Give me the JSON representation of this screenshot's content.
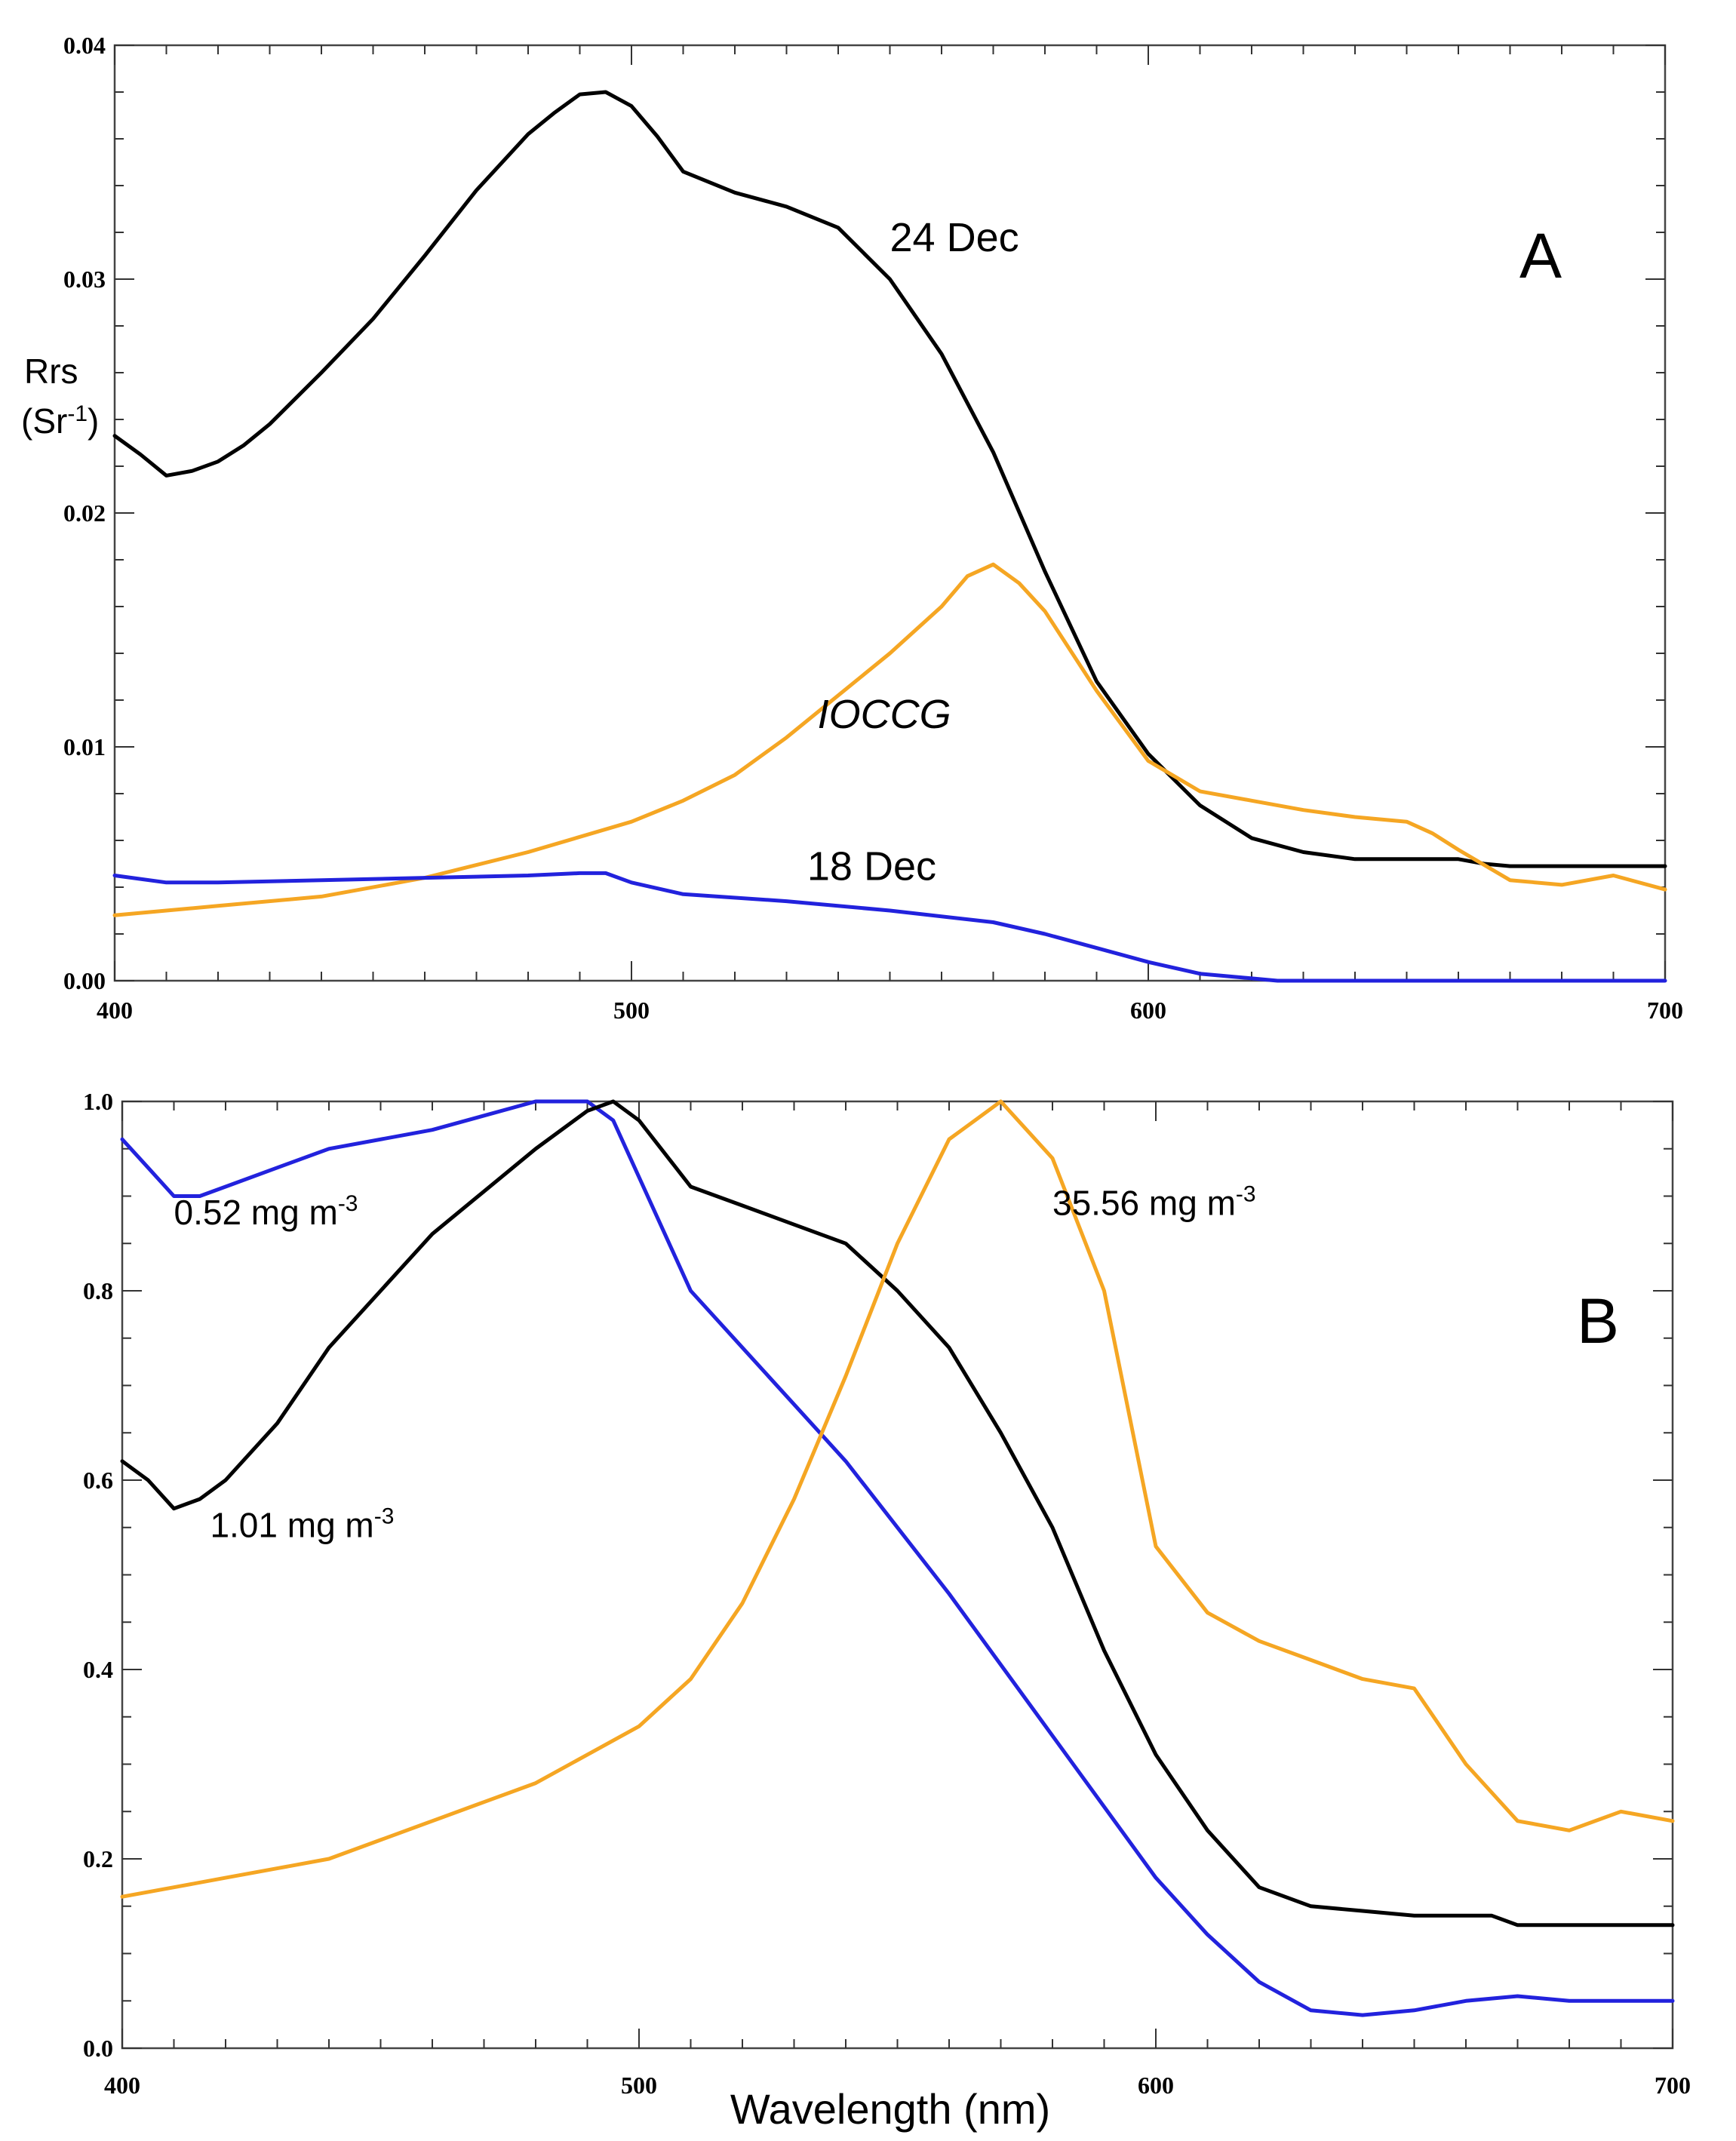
{
  "chart_data": [
    {
      "panel": "A",
      "type": "line",
      "panel_label": "A",
      "ylabel_line1": "Rrs",
      "ylabel_line2_base": "(Sr",
      "ylabel_line2_sup": "-1",
      "ylabel_line2_end": ")",
      "xlim": [
        400,
        700
      ],
      "ylim": [
        0,
        0.04
      ],
      "xticks": [
        {
          "value": 400,
          "label": "400"
        },
        {
          "value": 500,
          "label": "500"
        },
        {
          "value": 600,
          "label": "600"
        },
        {
          "value": 700,
          "label": "700"
        }
      ],
      "yticks": [
        {
          "value": 0.0,
          "label": "0.00"
        },
        {
          "value": 0.01,
          "label": "0.01"
        },
        {
          "value": 0.02,
          "label": "0.02"
        },
        {
          "value": 0.03,
          "label": "0.03"
        },
        {
          "value": 0.04,
          "label": "0.04"
        }
      ],
      "series": [
        {
          "name": "24 Dec",
          "color": "#000000",
          "x": [
            400,
            405,
            410,
            415,
            420,
            425,
            430,
            440,
            450,
            460,
            470,
            480,
            485,
            490,
            495,
            500,
            505,
            510,
            520,
            530,
            540,
            550,
            560,
            570,
            580,
            590,
            600,
            610,
            620,
            630,
            640,
            650,
            660,
            665,
            670,
            680,
            690,
            700
          ],
          "y": [
            0.0233,
            0.0225,
            0.0216,
            0.0218,
            0.0222,
            0.0229,
            0.0238,
            0.026,
            0.0283,
            0.031,
            0.0338,
            0.0362,
            0.0371,
            0.0379,
            0.038,
            0.0374,
            0.0361,
            0.0346,
            0.0337,
            0.0331,
            0.0322,
            0.03,
            0.0268,
            0.0226,
            0.0175,
            0.0128,
            0.0097,
            0.0075,
            0.0061,
            0.0055,
            0.0052,
            0.0052,
            0.0052,
            0.005,
            0.0049,
            0.0049,
            0.0049,
            0.0049
          ]
        },
        {
          "name": "IOCCG",
          "color": "#F5A623",
          "x": [
            400,
            410,
            420,
            440,
            460,
            480,
            500,
            510,
            520,
            530,
            540,
            550,
            560,
            565,
            570,
            575,
            580,
            590,
            600,
            610,
            620,
            630,
            640,
            650,
            655,
            660,
            670,
            680,
            690,
            700
          ],
          "y": [
            0.0028,
            0.003,
            0.0032,
            0.0036,
            0.0044,
            0.0055,
            0.0068,
            0.0077,
            0.0088,
            0.0104,
            0.0122,
            0.014,
            0.016,
            0.0173,
            0.0178,
            0.017,
            0.0158,
            0.0124,
            0.0094,
            0.0081,
            0.0077,
            0.0073,
            0.007,
            0.0068,
            0.0063,
            0.0056,
            0.0043,
            0.0041,
            0.0045,
            0.0039
          ]
        },
        {
          "name": "18 Dec",
          "color": "#2222DD",
          "x": [
            400,
            410,
            420,
            440,
            460,
            480,
            490,
            495,
            500,
            510,
            530,
            550,
            570,
            580,
            590,
            600,
            610,
            620,
            625,
            630,
            640,
            650,
            660,
            670,
            680,
            690,
            700
          ],
          "y": [
            0.0045,
            0.0042,
            0.0042,
            0.0043,
            0.0044,
            0.0045,
            0.0046,
            0.0046,
            0.0042,
            0.0037,
            0.0034,
            0.003,
            0.0025,
            0.002,
            0.0014,
            0.0008,
            0.0003,
            0.0001,
            0.0,
            0.0,
            0.0,
            0.0,
            0.0,
            0.0,
            0.0,
            0.0,
            0.0
          ]
        }
      ],
      "annotations": [
        {
          "text": "24 Dec",
          "x": 550,
          "y": 0.0312,
          "italic": false
        },
        {
          "text": "IOCCG",
          "x": 536,
          "y": 0.0108,
          "italic": true
        },
        {
          "text": "18 Dec",
          "x": 534,
          "y": 0.0043,
          "italic": false
        }
      ]
    },
    {
      "panel": "B",
      "type": "line",
      "panel_label": "B",
      "xlabel": "Wavelength (nm)",
      "xlim": [
        400,
        700
      ],
      "ylim": [
        0,
        1.0
      ],
      "xticks": [
        {
          "value": 400,
          "label": "400"
        },
        {
          "value": 500,
          "label": "500"
        },
        {
          "value": 600,
          "label": "600"
        },
        {
          "value": 700,
          "label": "700"
        }
      ],
      "yticks": [
        {
          "value": 0.0,
          "label": "0.0"
        },
        {
          "value": 0.2,
          "label": "0.2"
        },
        {
          "value": 0.4,
          "label": "0.4"
        },
        {
          "value": 0.6,
          "label": "0.6"
        },
        {
          "value": 0.8,
          "label": "0.8"
        },
        {
          "value": 1.0,
          "label": "1.0"
        }
      ],
      "series": [
        {
          "name": "0.52 mg m-3",
          "color": "#2222DD",
          "x": [
            400,
            405,
            410,
            415,
            420,
            430,
            440,
            460,
            480,
            490,
            495,
            500,
            510,
            520,
            540,
            560,
            580,
            600,
            610,
            620,
            630,
            640,
            650,
            660,
            670,
            680,
            690,
            700
          ],
          "y": [
            0.96,
            0.93,
            0.9,
            0.9,
            0.91,
            0.93,
            0.95,
            0.97,
            1.0,
            1.0,
            0.98,
            0.92,
            0.8,
            0.74,
            0.62,
            0.48,
            0.33,
            0.18,
            0.12,
            0.07,
            0.04,
            0.035,
            0.04,
            0.05,
            0.055,
            0.05,
            0.05,
            0.05
          ]
        },
        {
          "name": "1.01 mg m-3",
          "color": "#000000",
          "x": [
            400,
            405,
            410,
            415,
            420,
            430,
            440,
            460,
            480,
            490,
            495,
            500,
            510,
            520,
            530,
            540,
            550,
            560,
            570,
            580,
            590,
            600,
            610,
            620,
            630,
            640,
            650,
            660,
            665,
            670,
            680,
            690,
            700
          ],
          "y": [
            0.62,
            0.6,
            0.57,
            0.58,
            0.6,
            0.66,
            0.74,
            0.86,
            0.95,
            0.99,
            1.0,
            0.98,
            0.91,
            0.89,
            0.87,
            0.85,
            0.8,
            0.74,
            0.65,
            0.55,
            0.42,
            0.31,
            0.23,
            0.17,
            0.15,
            0.145,
            0.14,
            0.14,
            0.14,
            0.13,
            0.13,
            0.13,
            0.13
          ]
        },
        {
          "name": "35.56 mg m-3",
          "color": "#F5A623",
          "x": [
            400,
            410,
            420,
            430,
            440,
            450,
            460,
            470,
            480,
            490,
            500,
            510,
            520,
            530,
            540,
            550,
            560,
            565,
            570,
            575,
            580,
            590,
            600,
            610,
            620,
            630,
            640,
            650,
            655,
            660,
            670,
            680,
            690,
            700
          ],
          "y": [
            0.16,
            0.17,
            0.18,
            0.19,
            0.2,
            0.22,
            0.24,
            0.26,
            0.28,
            0.31,
            0.34,
            0.39,
            0.47,
            0.58,
            0.71,
            0.85,
            0.96,
            0.98,
            1.0,
            0.97,
            0.94,
            0.8,
            0.53,
            0.46,
            0.43,
            0.41,
            0.39,
            0.38,
            0.34,
            0.3,
            0.24,
            0.23,
            0.25,
            0.24
          ]
        }
      ],
      "annotations": [
        {
          "label_base": "0.52 mg m",
          "label_sup": "-3",
          "x": 410,
          "y": 0.87
        },
        {
          "label_base": "35.56 mg m",
          "label_sup": "-3",
          "x": 580,
          "y": 0.88
        },
        {
          "label_base": "1.01 mg m",
          "label_sup": "-3",
          "x": 417,
          "y": 0.54
        }
      ]
    }
  ],
  "colors": {
    "black": "#000000",
    "orange": "#F5A623",
    "blue": "#2222DD"
  }
}
